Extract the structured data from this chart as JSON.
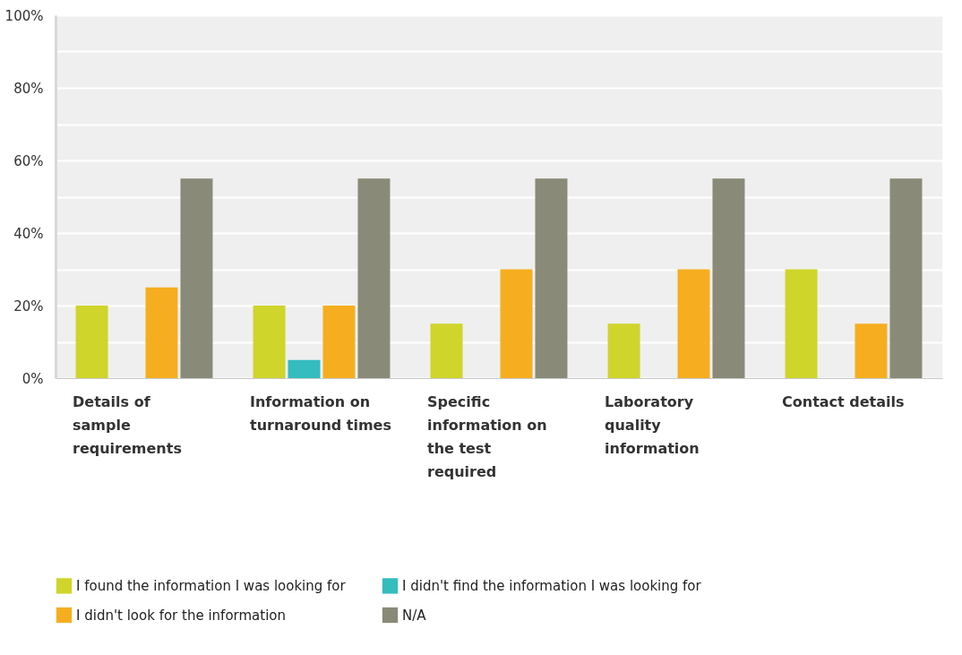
{
  "chart_data": {
    "type": "bar",
    "categories": [
      "Details of sample requirements",
      "Information on turnaround times",
      "Specific information on the test required",
      "Laboratory quality information",
      "Contact details"
    ],
    "series": [
      {
        "name": "I found the information I was looking for",
        "color": "#cfd52b",
        "values": [
          20,
          20,
          15,
          15,
          30
        ]
      },
      {
        "name": "I didn't find the information I was looking for",
        "color": "#34bcbe",
        "values": [
          0,
          5,
          0,
          0,
          0
        ]
      },
      {
        "name": "I didn't look for the information",
        "color": "#f6ae20",
        "values": [
          25,
          20,
          30,
          30,
          15
        ]
      },
      {
        "name": "N/A",
        "color": "#8a8a79",
        "values": [
          55,
          55,
          55,
          55,
          55
        ]
      }
    ],
    "ylim": [
      0,
      100
    ],
    "yticks": [
      {
        "value": 0,
        "label": "0%"
      },
      {
        "value": 10,
        "label": null
      },
      {
        "value": 20,
        "label": "20%"
      },
      {
        "value": 30,
        "label": null
      },
      {
        "value": 40,
        "label": "40%"
      },
      {
        "value": 50,
        "label": null
      },
      {
        "value": 60,
        "label": "60%"
      },
      {
        "value": 70,
        "label": null
      },
      {
        "value": 80,
        "label": "80%"
      },
      {
        "value": 90,
        "label": null
      },
      {
        "value": 100,
        "label": "100%"
      }
    ],
    "grid": "y",
    "legend": "bottom"
  }
}
